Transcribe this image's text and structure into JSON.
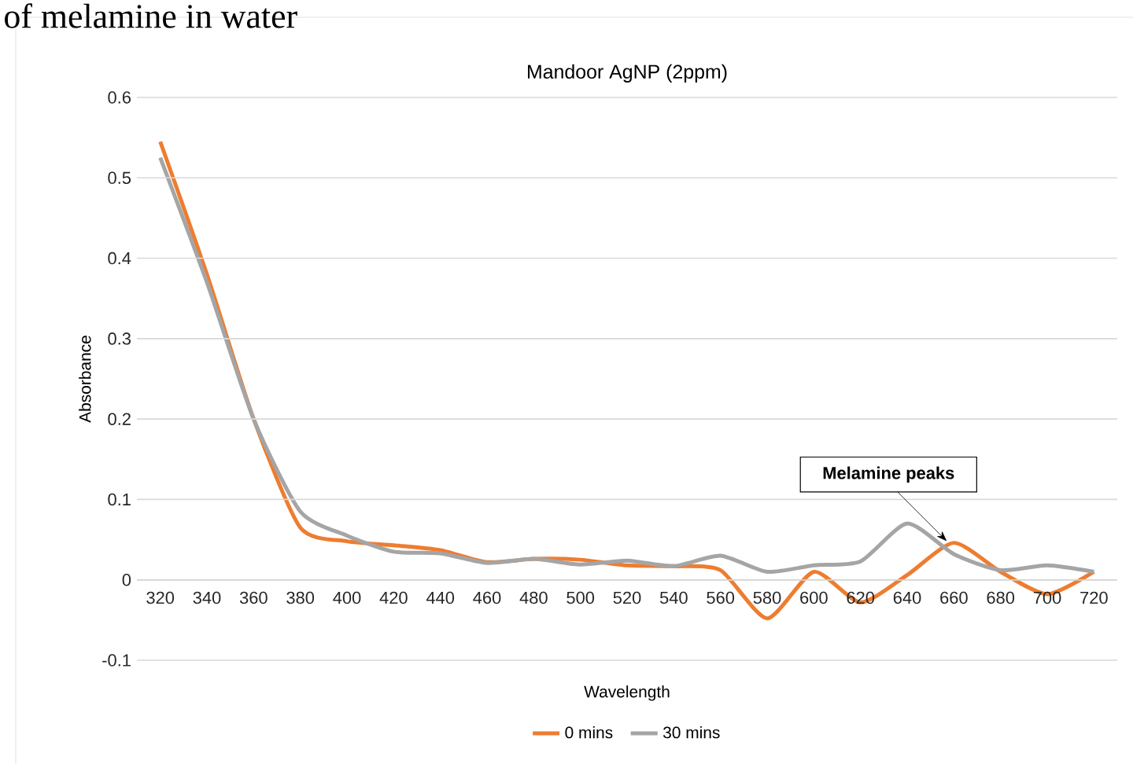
{
  "chart_data": {
    "type": "line",
    "title": "Mandoor AgNP (2ppm)",
    "xlabel": "Wavelength",
    "ylabel": "Absorbance",
    "categories": [
      "320",
      "340",
      "360",
      "380",
      "400",
      "420",
      "440",
      "460",
      "480",
      "500",
      "520",
      "540",
      "560",
      "580",
      "600",
      "620",
      "640",
      "660",
      "680",
      "700",
      "720"
    ],
    "series": [
      {
        "name": "0 mins",
        "color": "#ed7d31",
        "values": [
          0.545,
          0.38,
          0.2,
          0.065,
          0.048,
          0.043,
          0.037,
          0.022,
          0.026,
          0.025,
          0.018,
          0.017,
          0.012,
          -0.048,
          0.01,
          -0.028,
          0.006,
          0.046,
          0.01,
          -0.018,
          0.01
        ]
      },
      {
        "name": "30 mins",
        "color": "#a5a5a5",
        "values": [
          0.525,
          0.37,
          0.2,
          0.085,
          0.055,
          0.035,
          0.033,
          0.021,
          0.026,
          0.019,
          0.024,
          0.017,
          0.03,
          0.01,
          0.018,
          0.023,
          0.07,
          0.032,
          0.012,
          0.018,
          0.01
        ]
      }
    ],
    "ylim": [
      -0.1,
      0.6
    ],
    "yticks": [
      -0.1,
      0,
      0.1,
      0.2,
      0.3,
      0.4,
      0.5,
      0.6
    ],
    "grid": "y",
    "legend": "bottom",
    "marker": "none",
    "line_style": "solid",
    "annotations": [
      "of melamine in water",
      {
        "text": "Melamine peaks",
        "x": "660",
        "y": 0.046
      }
    ]
  }
}
